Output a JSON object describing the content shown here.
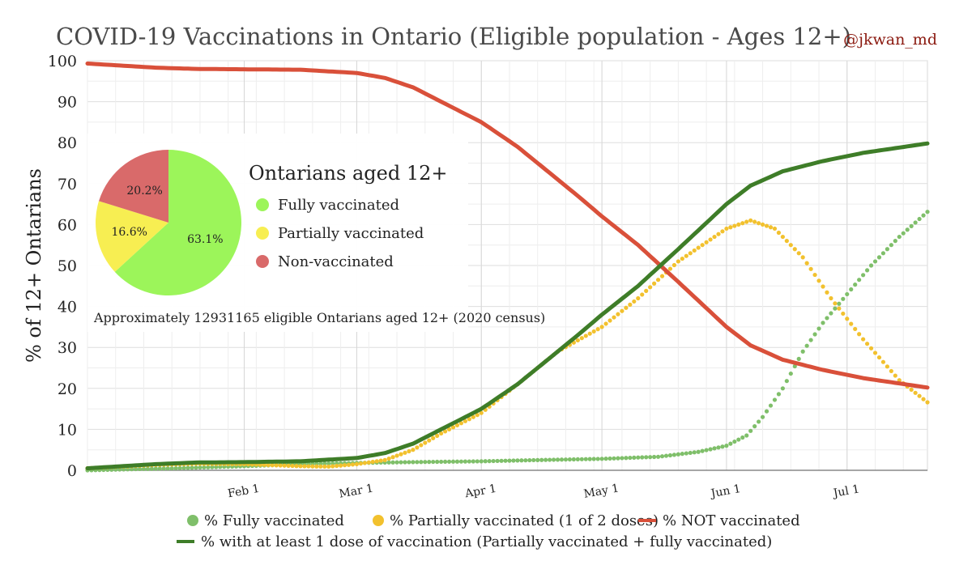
{
  "chart_data": [
    {
      "type": "line",
      "title": "COVID-19 Vaccinations in Ontario (Eligible population - Ages 12+)",
      "credit": "@jkwan_md",
      "ylabel": "% of 12+ Ontarians",
      "xlabel": "",
      "ylim": [
        0,
        100
      ],
      "yticks": [
        "0",
        "10",
        "20",
        "30",
        "40",
        "50",
        "60",
        "70",
        "80",
        "90",
        "100"
      ],
      "xlim": [
        "2020-12-24",
        "2021-07-21"
      ],
      "xticks": [
        {
          "label": "Feb 1",
          "date": "2021-02-01"
        },
        {
          "label": "Mar 1",
          "date": "2021-03-01"
        },
        {
          "label": "Apr 1",
          "date": "2021-04-01"
        },
        {
          "label": "May 1",
          "date": "2021-05-01"
        },
        {
          "label": "Jun 1",
          "date": "2021-06-01"
        },
        {
          "label": "Jul 1",
          "date": "2021-07-01"
        }
      ],
      "grid": true,
      "legend_position": "bottom",
      "series": [
        {
          "name": "% Fully vaccinated",
          "style": "dots",
          "color": "#7fbf6a",
          "points": [
            [
              "2020-12-24",
              0
            ],
            [
              "2021-01-01",
              0.2
            ],
            [
              "2021-01-15",
              0.5
            ],
            [
              "2021-02-01",
              1.0
            ],
            [
              "2021-02-15",
              1.5
            ],
            [
              "2021-03-01",
              1.8
            ],
            [
              "2021-03-15",
              2.0
            ],
            [
              "2021-04-01",
              2.2
            ],
            [
              "2021-04-15",
              2.5
            ],
            [
              "2021-05-01",
              2.8
            ],
            [
              "2021-05-15",
              3.3
            ],
            [
              "2021-05-25",
              4.5
            ],
            [
              "2021-06-01",
              6.0
            ],
            [
              "2021-06-06",
              8.5
            ],
            [
              "2021-06-10",
              13
            ],
            [
              "2021-06-15",
              20
            ],
            [
              "2021-06-20",
              29
            ],
            [
              "2021-06-25",
              36
            ],
            [
              "2021-07-01",
              43
            ],
            [
              "2021-07-07",
              50
            ],
            [
              "2021-07-14",
              57
            ],
            [
              "2021-07-21",
              63.1
            ]
          ]
        },
        {
          "name": "% Partially vaccinated (1 of 2 doses)",
          "style": "dots",
          "color": "#f2c12e",
          "points": [
            [
              "2020-12-24",
              0.5
            ],
            [
              "2021-01-10",
              1.3
            ],
            [
              "2021-01-20",
              1.6
            ],
            [
              "2021-02-01",
              1.5
            ],
            [
              "2021-02-15",
              1.0
            ],
            [
              "2021-02-22",
              0.9
            ],
            [
              "2021-03-01",
              1.5
            ],
            [
              "2021-03-08",
              2.5
            ],
            [
              "2021-03-15",
              5
            ],
            [
              "2021-03-22",
              9
            ],
            [
              "2021-04-01",
              14
            ],
            [
              "2021-04-10",
              21
            ],
            [
              "2021-04-20",
              29
            ],
            [
              "2021-05-01",
              35
            ],
            [
              "2021-05-10",
              42
            ],
            [
              "2021-05-20",
              51
            ],
            [
              "2021-06-01",
              59
            ],
            [
              "2021-06-07",
              61
            ],
            [
              "2021-06-13",
              59
            ],
            [
              "2021-06-20",
              52
            ],
            [
              "2021-06-27",
              42
            ],
            [
              "2021-07-05",
              32
            ],
            [
              "2021-07-14",
              22
            ],
            [
              "2021-07-21",
              16.6
            ]
          ]
        },
        {
          "name": "% NOT vaccinated",
          "style": "line",
          "color": "#d9503a",
          "points": [
            [
              "2020-12-24",
              99.3
            ],
            [
              "2021-01-10",
              98.3
            ],
            [
              "2021-01-20",
              98.0
            ],
            [
              "2021-02-01",
              97.9
            ],
            [
              "2021-02-15",
              97.8
            ],
            [
              "2021-03-01",
              97.0
            ],
            [
              "2021-03-08",
              95.8
            ],
            [
              "2021-03-15",
              93.5
            ],
            [
              "2021-03-22",
              90
            ],
            [
              "2021-04-01",
              85
            ],
            [
              "2021-04-10",
              79
            ],
            [
              "2021-04-20",
              71
            ],
            [
              "2021-04-25",
              67
            ],
            [
              "2021-05-01",
              62
            ],
            [
              "2021-05-10",
              55
            ],
            [
              "2021-05-20",
              46
            ],
            [
              "2021-06-01",
              35
            ],
            [
              "2021-06-07",
              30.5
            ],
            [
              "2021-06-15",
              27
            ],
            [
              "2021-06-25",
              24.5
            ],
            [
              "2021-07-05",
              22.5
            ],
            [
              "2021-07-21",
              20.2
            ]
          ]
        },
        {
          "name": "% with at least 1 dose of vaccination (Partially vaccinated + fully vaccinated)",
          "style": "line",
          "color": "#3e7d28",
          "points": [
            [
              "2020-12-24",
              0.5
            ],
            [
              "2021-01-10",
              1.5
            ],
            [
              "2021-01-20",
              1.9
            ],
            [
              "2021-02-01",
              2.0
            ],
            [
              "2021-02-15",
              2.2
            ],
            [
              "2021-03-01",
              3.0
            ],
            [
              "2021-03-08",
              4.2
            ],
            [
              "2021-03-15",
              6.5
            ],
            [
              "2021-03-22",
              10
            ],
            [
              "2021-04-01",
              15
            ],
            [
              "2021-04-10",
              21
            ],
            [
              "2021-04-20",
              29
            ],
            [
              "2021-04-25",
              33
            ],
            [
              "2021-05-01",
              38
            ],
            [
              "2021-05-10",
              45
            ],
            [
              "2021-05-20",
              54
            ],
            [
              "2021-06-01",
              65
            ],
            [
              "2021-06-07",
              69.5
            ],
            [
              "2021-06-15",
              73
            ],
            [
              "2021-06-25",
              75.5
            ],
            [
              "2021-07-05",
              77.5
            ],
            [
              "2021-07-21",
              79.8
            ]
          ]
        }
      ]
    },
    {
      "type": "pie",
      "title": "Ontarians aged 12+",
      "note": "Approximately 12931165 eligible Ontarians aged 12+ (2020 census)",
      "slices": [
        {
          "label": "Fully vaccinated",
          "value": 63.1,
          "text": "63.1%",
          "color": "#9cf55a"
        },
        {
          "label": "Partially vaccinated",
          "value": 16.6,
          "text": "16.6%",
          "color": "#f7ee52"
        },
        {
          "label": "Non-vaccinated",
          "value": 20.2,
          "text": "20.2%",
          "color": "#d96a6a"
        }
      ]
    }
  ]
}
